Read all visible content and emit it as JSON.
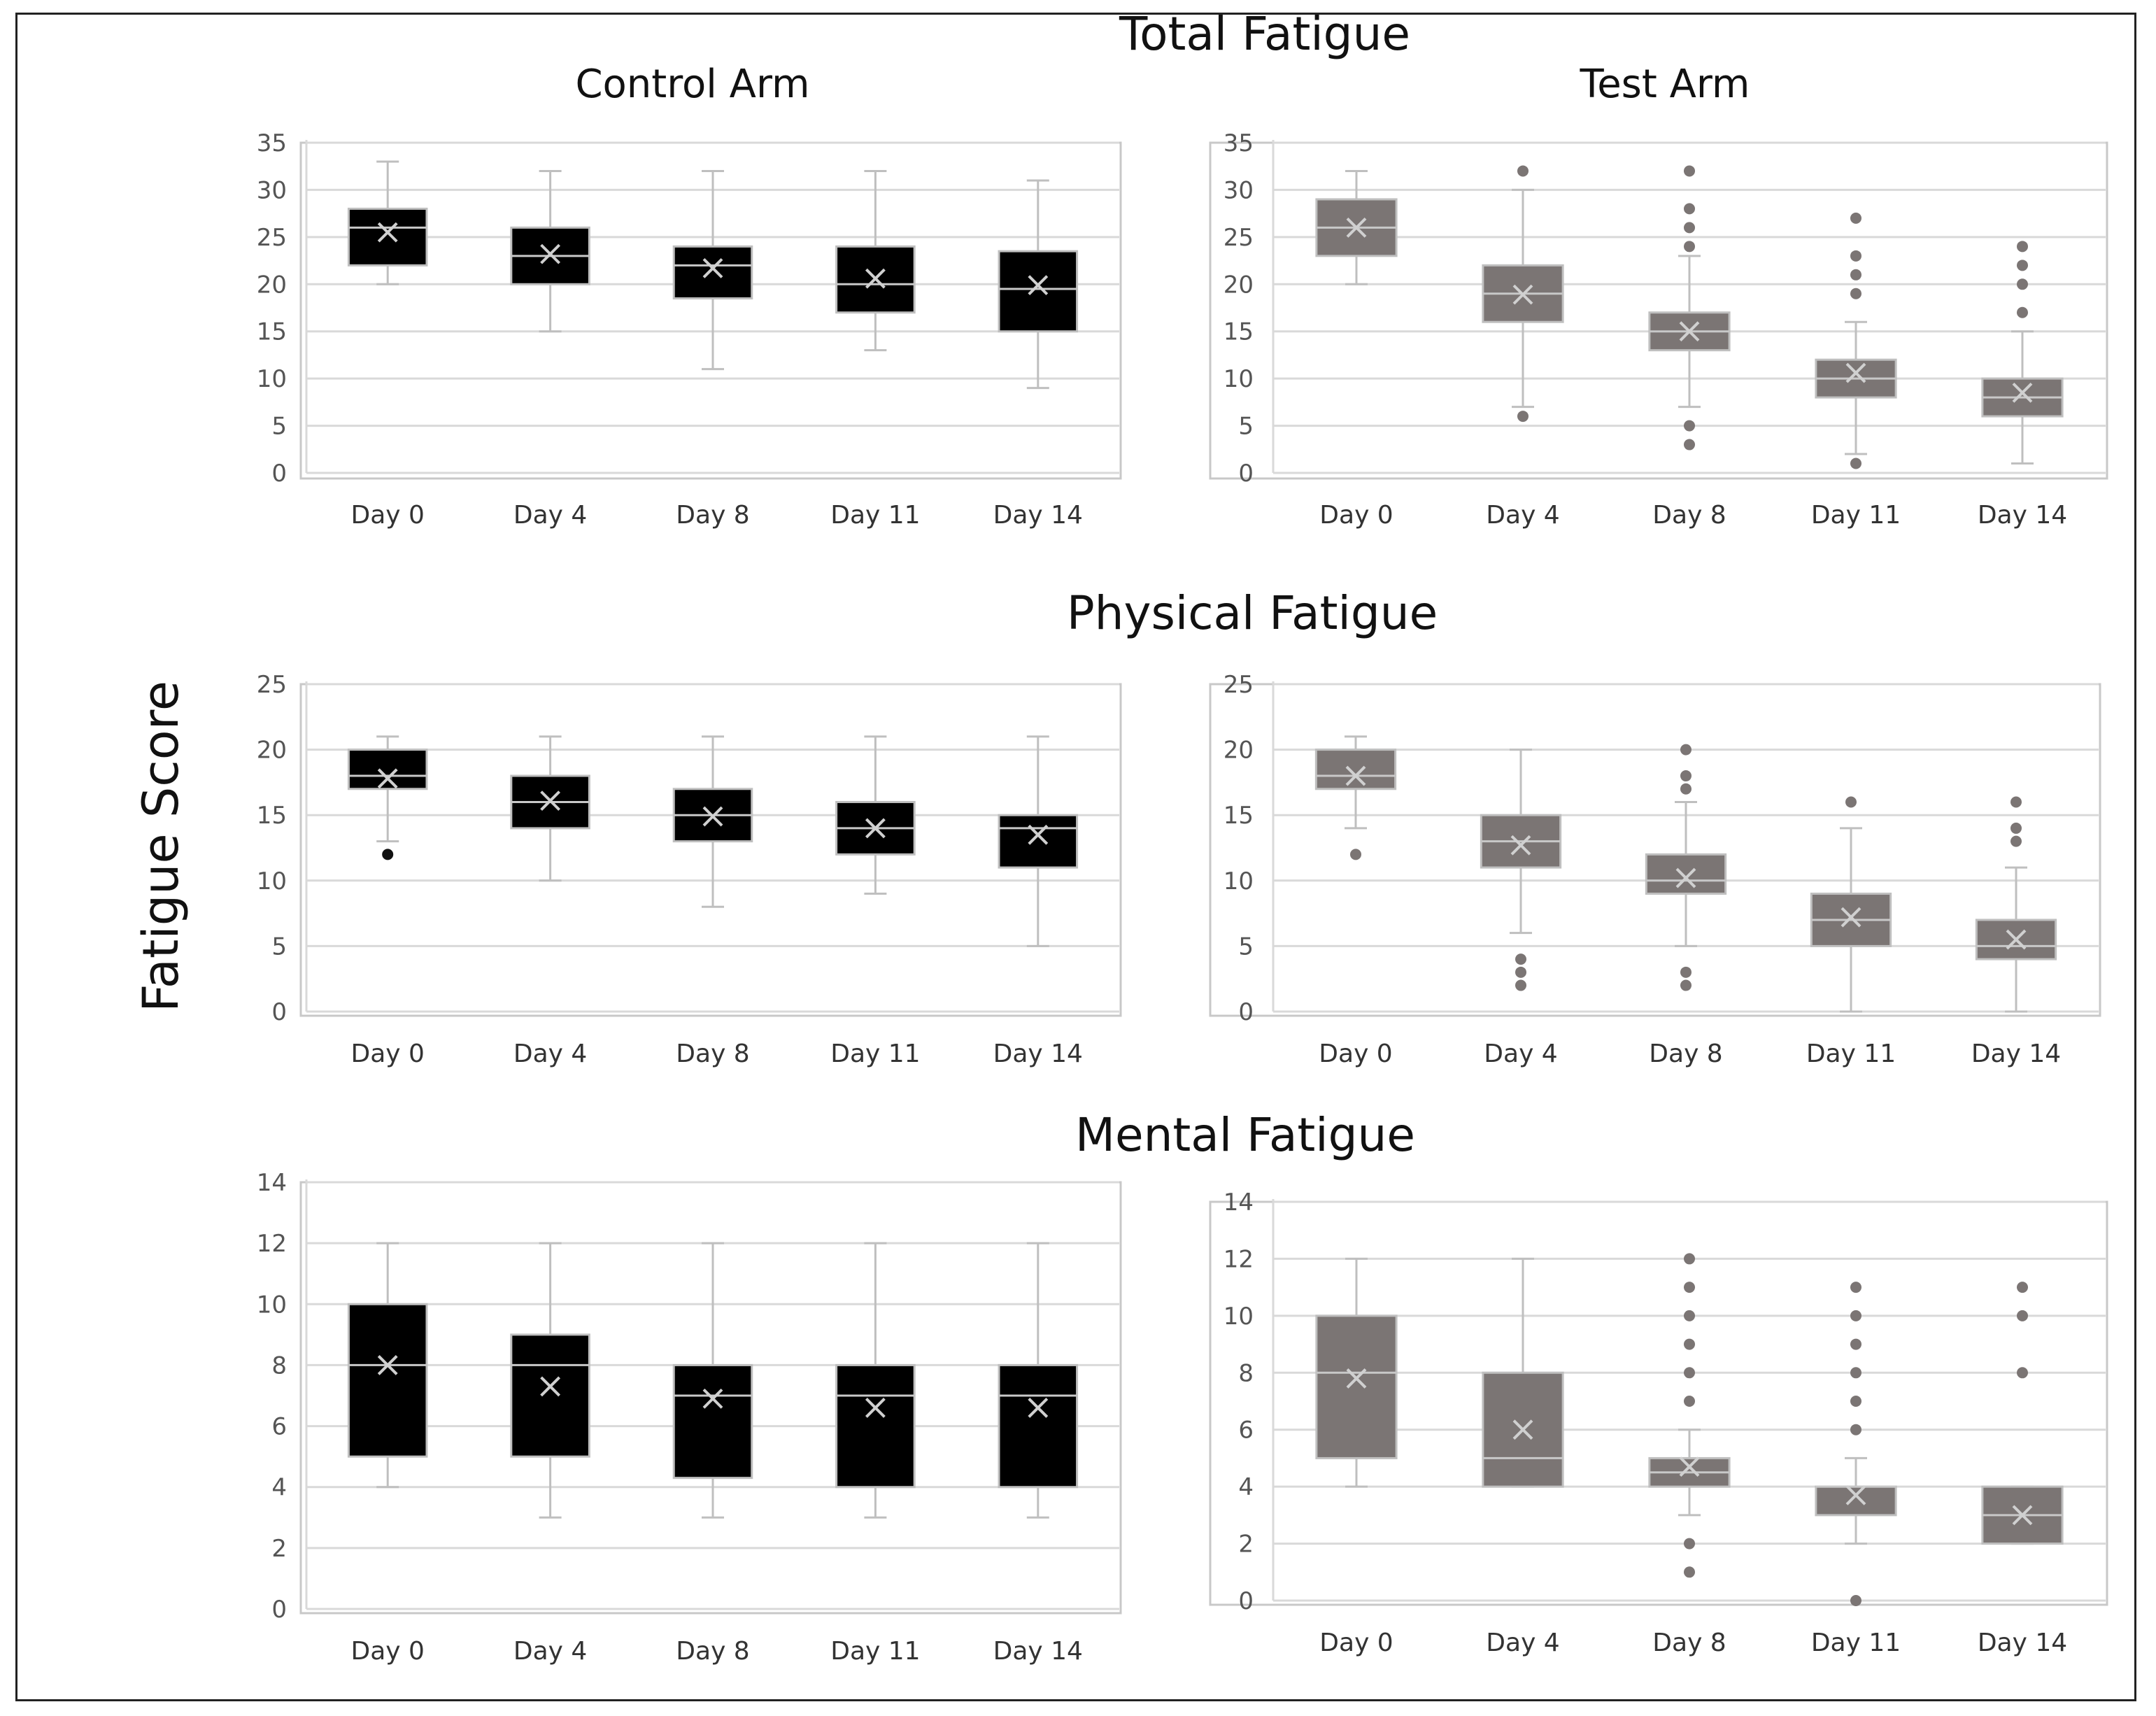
{
  "figure": {
    "axis_label": "Fatigue Score",
    "arm_titles": [
      "Control Arm",
      "Test Arm"
    ],
    "sections": [
      "Total Fatigue",
      "Physical Fatigue",
      "Mental Fatigue"
    ]
  },
  "colors": {
    "control_box": "#000000",
    "test_box": "#7b7574",
    "whisker": "#bfbfbf",
    "outlier_control": "#111111",
    "outlier_test": "#7b7574",
    "gridline": "#d9d9d9",
    "plot_border": "#c8c8c8"
  },
  "chart_data": [
    {
      "type": "box",
      "section": "Total Fatigue",
      "arm": "Control Arm",
      "categories": [
        "Day 0",
        "Day 4",
        "Day 8",
        "Day 11",
        "Day 14"
      ],
      "ylim": [
        0,
        35
      ],
      "yticks": [
        0,
        5,
        10,
        15,
        20,
        25,
        30,
        35
      ],
      "boxes": [
        {
          "min": 20,
          "q1": 22,
          "median": 26,
          "q3": 28,
          "max": 33,
          "mean": 25.5,
          "outliers": []
        },
        {
          "min": 15,
          "q1": 20,
          "median": 23,
          "q3": 26,
          "max": 32,
          "mean": 23.2,
          "outliers": []
        },
        {
          "min": 11,
          "q1": 18.5,
          "median": 22,
          "q3": 24,
          "max": 32,
          "mean": 21.7,
          "outliers": []
        },
        {
          "min": 13,
          "q1": 17,
          "median": 20,
          "q3": 24,
          "max": 32,
          "mean": 20.6,
          "outliers": []
        },
        {
          "min": 9,
          "q1": 15,
          "median": 19.5,
          "q3": 23.5,
          "max": 31,
          "mean": 19.9,
          "outliers": []
        }
      ]
    },
    {
      "type": "box",
      "section": "Total Fatigue",
      "arm": "Test Arm",
      "categories": [
        "Day 0",
        "Day 4",
        "Day 8",
        "Day 11",
        "Day 14"
      ],
      "ylim": [
        0,
        35
      ],
      "yticks": [
        0,
        5,
        10,
        15,
        20,
        25,
        30,
        35
      ],
      "boxes": [
        {
          "min": 20,
          "q1": 23,
          "median": 26,
          "q3": 29,
          "max": 32,
          "mean": 26,
          "outliers": []
        },
        {
          "min": 7,
          "q1": 16,
          "median": 19,
          "q3": 22,
          "max": 30,
          "mean": 18.9,
          "outliers": [
            6,
            32
          ]
        },
        {
          "min": 7,
          "q1": 13,
          "median": 15,
          "q3": 17,
          "max": 23,
          "mean": 15,
          "outliers": [
            3,
            5,
            24,
            26,
            28,
            32
          ]
        },
        {
          "min": 2,
          "q1": 8,
          "median": 10,
          "q3": 12,
          "max": 16,
          "mean": 10.6,
          "outliers": [
            1,
            19,
            21,
            23,
            27
          ]
        },
        {
          "min": 1,
          "q1": 6,
          "median": 8,
          "q3": 10,
          "max": 15,
          "mean": 8.5,
          "outliers": [
            17,
            20,
            22,
            24
          ]
        }
      ]
    },
    {
      "type": "box",
      "section": "Physical Fatigue",
      "arm": "Control Arm",
      "categories": [
        "Day 0",
        "Day 4",
        "Day 8",
        "Day 11",
        "Day 14"
      ],
      "ylim": [
        0,
        25
      ],
      "yticks": [
        0,
        5,
        10,
        15,
        20,
        25
      ],
      "boxes": [
        {
          "min": 13,
          "q1": 17,
          "median": 18,
          "q3": 20,
          "max": 21,
          "mean": 17.8,
          "outliers": [
            12
          ]
        },
        {
          "min": 10,
          "q1": 14,
          "median": 16,
          "q3": 18,
          "max": 21,
          "mean": 16.1,
          "outliers": []
        },
        {
          "min": 8,
          "q1": 13,
          "median": 15,
          "q3": 17,
          "max": 21,
          "mean": 14.9,
          "outliers": []
        },
        {
          "min": 9,
          "q1": 12,
          "median": 14,
          "q3": 16,
          "max": 21,
          "mean": 14,
          "outliers": []
        },
        {
          "min": 5,
          "q1": 11,
          "median": 14,
          "q3": 15,
          "max": 21,
          "mean": 13.5,
          "outliers": []
        }
      ]
    },
    {
      "type": "box",
      "section": "Physical Fatigue",
      "arm": "Test Arm",
      "categories": [
        "Day 0",
        "Day 4",
        "Day 8",
        "Day 11",
        "Day 14"
      ],
      "ylim": [
        0,
        25
      ],
      "yticks": [
        0,
        5,
        10,
        15,
        20,
        25
      ],
      "boxes": [
        {
          "min": 14,
          "q1": 17,
          "median": 18,
          "q3": 20,
          "max": 21,
          "mean": 18,
          "outliers": [
            12
          ]
        },
        {
          "min": 6,
          "q1": 11,
          "median": 13,
          "q3": 15,
          "max": 20,
          "mean": 12.7,
          "outliers": [
            2,
            3,
            4
          ]
        },
        {
          "min": 5,
          "q1": 9,
          "median": 10,
          "q3": 12,
          "max": 16,
          "mean": 10.2,
          "outliers": [
            2,
            3,
            17,
            18,
            20
          ]
        },
        {
          "min": 0,
          "q1": 5,
          "median": 7,
          "q3": 9,
          "max": 14,
          "mean": 7.2,
          "outliers": [
            16
          ]
        },
        {
          "min": 0,
          "q1": 4,
          "median": 5,
          "q3": 7,
          "max": 11,
          "mean": 5.5,
          "outliers": [
            13,
            14,
            16
          ]
        }
      ]
    },
    {
      "type": "box",
      "section": "Mental Fatigue",
      "arm": "Control Arm",
      "categories": [
        "Day 0",
        "Day 4",
        "Day 8",
        "Day 11",
        "Day 14"
      ],
      "ylim": [
        0,
        14
      ],
      "yticks": [
        0,
        2,
        4,
        6,
        8,
        10,
        12,
        14
      ],
      "boxes": [
        {
          "min": 4,
          "q1": 5,
          "median": 8,
          "q3": 10,
          "max": 12,
          "mean": 8,
          "outliers": []
        },
        {
          "min": 3,
          "q1": 5,
          "median": 8,
          "q3": 9,
          "max": 12,
          "mean": 7.3,
          "outliers": []
        },
        {
          "min": 3,
          "q1": 4.3,
          "median": 7,
          "q3": 8,
          "max": 12,
          "mean": 6.9,
          "outliers": []
        },
        {
          "min": 3,
          "q1": 4,
          "median": 7,
          "q3": 8,
          "max": 12,
          "mean": 6.6,
          "outliers": []
        },
        {
          "min": 3,
          "q1": 4,
          "median": 7,
          "q3": 8,
          "max": 12,
          "mean": 6.6,
          "outliers": []
        }
      ]
    },
    {
      "type": "box",
      "section": "Mental Fatigue",
      "arm": "Test Arm",
      "categories": [
        "Day 0",
        "Day 4",
        "Day 8",
        "Day 11",
        "Day 14"
      ],
      "ylim": [
        0,
        14
      ],
      "yticks": [
        0,
        2,
        4,
        6,
        8,
        10,
        12,
        14
      ],
      "boxes": [
        {
          "min": 4,
          "q1": 5,
          "median": 8,
          "q3": 10,
          "max": 12,
          "mean": 7.8,
          "outliers": []
        },
        {
          "min": 4,
          "q1": 4,
          "median": 5,
          "q3": 8,
          "max": 12,
          "mean": 6,
          "outliers": []
        },
        {
          "min": 3,
          "q1": 4,
          "median": 4.5,
          "q3": 5,
          "max": 6,
          "mean": 4.7,
          "outliers": [
            1,
            2,
            7,
            8,
            9,
            10,
            11,
            12
          ]
        },
        {
          "min": 2,
          "q1": 3,
          "median": 4,
          "q3": 4,
          "max": 5,
          "mean": 3.7,
          "outliers": [
            0,
            6,
            7,
            8,
            9,
            10,
            11
          ]
        },
        {
          "min": 2,
          "q1": 2,
          "median": 3,
          "q3": 4,
          "max": 4,
          "mean": 3,
          "outliers": [
            8,
            10,
            11
          ]
        }
      ]
    }
  ]
}
